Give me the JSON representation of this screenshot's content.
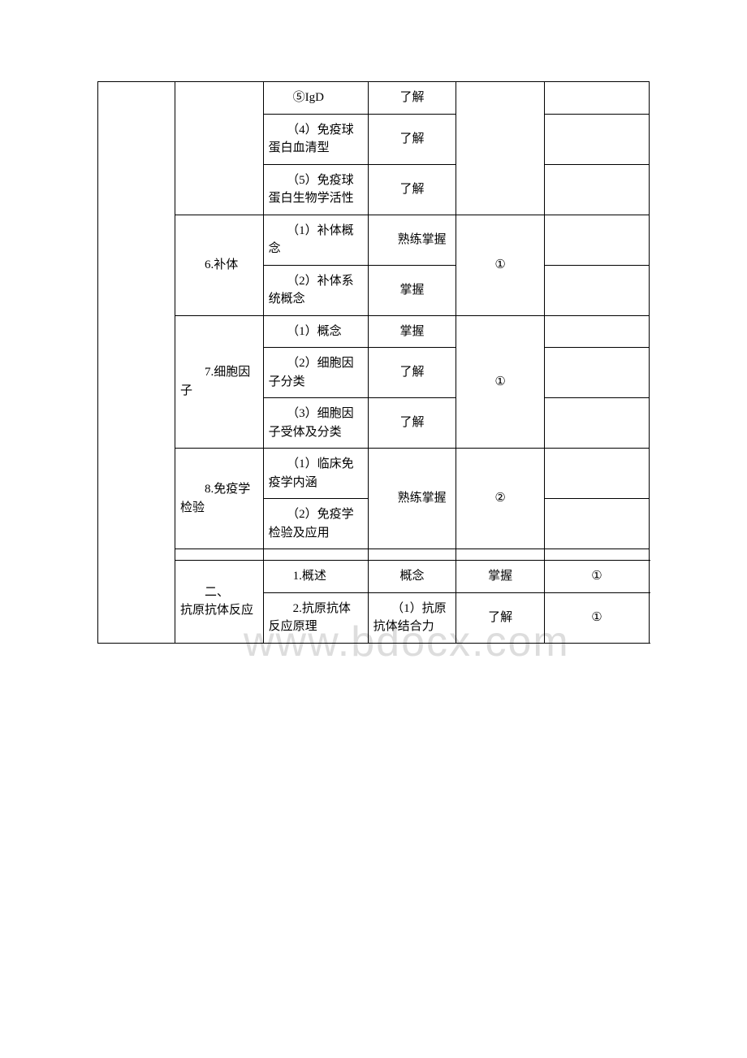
{
  "watermark": "www.bdocx.com",
  "table": {
    "border_color": "#000000",
    "font_size": 15,
    "font_family": "SimSun",
    "background_color": "#ffffff",
    "text_color": "#000000",
    "column_widths_pct": [
      14,
      16,
      19,
      16,
      16,
      19
    ],
    "rows": [
      {
        "cells": [
          {
            "text": "",
            "rowspan": 13
          },
          {
            "text": "",
            "rowspan": 3
          },
          {
            "text": "　　⑤IgD"
          },
          {
            "text": "了解",
            "align": "center"
          },
          {
            "text": "",
            "rowspan": 3
          },
          {
            "text": ""
          }
        ]
      },
      {
        "cells": [
          {
            "text": "　　（4）免疫球蛋白血清型"
          },
          {
            "text": "了解",
            "align": "center"
          },
          {
            "text": ""
          }
        ]
      },
      {
        "cells": [
          {
            "text": "　　（5）免疫球蛋白生物学活性"
          },
          {
            "text": "了解",
            "align": "center"
          },
          {
            "text": ""
          }
        ]
      },
      {
        "cells": [
          {
            "text": "　　6.补体",
            "rowspan": 2
          },
          {
            "text": "　　（1）补体概念"
          },
          {
            "text": "　　熟练掌握",
            "rowspan": 1
          },
          {
            "text": "①",
            "rowspan": 2,
            "align": "center"
          },
          {
            "text": ""
          }
        ]
      },
      {
        "cells": [
          {
            "text": "　　（2）补体系统概念"
          },
          {
            "text": "掌握",
            "align": "center"
          },
          {
            "text": ""
          }
        ]
      },
      {
        "cells": [
          {
            "text": "　　7.细胞因子",
            "rowspan": 3
          },
          {
            "text": "　　（1）概念"
          },
          {
            "text": "掌握",
            "align": "center"
          },
          {
            "text": "①",
            "rowspan": 3,
            "align": "center"
          },
          {
            "text": ""
          }
        ]
      },
      {
        "cells": [
          {
            "text": "　　（2）细胞因子分类"
          },
          {
            "text": "了解",
            "align": "center"
          },
          {
            "text": ""
          }
        ]
      },
      {
        "cells": [
          {
            "text": "　　（3）细胞因子受体及分类"
          },
          {
            "text": "了解",
            "align": "center"
          },
          {
            "text": ""
          }
        ]
      },
      {
        "cells": [
          {
            "text": "　　8.免疫学检验",
            "rowspan": 2
          },
          {
            "text": "　　（1）临床免疫学内涵"
          },
          {
            "text": "　　熟练掌握",
            "rowspan": 2
          },
          {
            "text": "②",
            "rowspan": 2,
            "align": "center"
          },
          {
            "text": ""
          }
        ]
      },
      {
        "cells": [
          {
            "text": "　　（2）免疫学检验及应用"
          },
          {
            "text": ""
          }
        ]
      },
      {
        "spacer": true,
        "cells": [
          {
            "text": ""
          },
          {
            "text": ""
          },
          {
            "text": ""
          },
          {
            "text": ""
          },
          {
            "text": ""
          }
        ]
      },
      {
        "cells": [
          {
            "text_lines": [
              "　　二、",
              "抗原抗体反应"
            ],
            "rowspan": 2
          },
          {
            "text": "　　1.概述"
          },
          {
            "text": "概念",
            "align": "center"
          },
          {
            "text": "掌握",
            "align": "center"
          },
          {
            "text": "①",
            "align": "center"
          },
          {
            "text": ""
          }
        ]
      },
      {
        "cells": [
          {
            "text": "　　2.抗原抗体反应原理"
          },
          {
            "text": "　　（1）抗原抗体结合力"
          },
          {
            "text": "了解",
            "align": "center"
          },
          {
            "text": "①",
            "align": "center"
          },
          {
            "text": ""
          }
        ]
      }
    ]
  }
}
